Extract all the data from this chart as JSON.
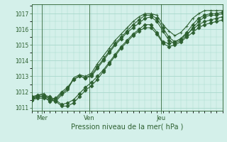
{
  "bg_color": "#d4f0ea",
  "grid_color": "#a8d8cc",
  "line_color": "#2d6030",
  "title": "Pression niveau de la mer( hPa )",
  "xlabel_mer": "Mer",
  "xlabel_ven": "Ven",
  "xlabel_jeu": "Jeu",
  "ymin": 1010.8,
  "ymax": 1017.6,
  "yticks": [
    1011,
    1012,
    1013,
    1014,
    1015,
    1016,
    1017
  ],
  "xmin": 0,
  "xmax": 96,
  "x_mer": 5,
  "x_ven": 29,
  "x_jeu": 65,
  "lines": [
    {
      "x": [
        0,
        3,
        6,
        9,
        12,
        15,
        18,
        21,
        24,
        27,
        30,
        33,
        36,
        39,
        42,
        45,
        48,
        51,
        54,
        57,
        60,
        63,
        66,
        69,
        72,
        75,
        78,
        81,
        84,
        87,
        90,
        93,
        96
      ],
      "y": [
        1011.6,
        1011.8,
        1011.9,
        1011.5,
        1011.4,
        1011.8,
        1012.1,
        1012.9,
        1013.1,
        1013.0,
        1013.2,
        1013.8,
        1014.3,
        1014.8,
        1015.3,
        1015.7,
        1016.1,
        1016.5,
        1016.8,
        1017.0,
        1017.0,
        1016.9,
        1016.3,
        1015.9,
        1015.6,
        1015.8,
        1016.2,
        1016.7,
        1017.0,
        1017.2,
        1017.2,
        1017.2,
        1017.2
      ],
      "marker": "+"
    },
    {
      "x": [
        0,
        3,
        6,
        9,
        12,
        15,
        18,
        21,
        24,
        27,
        30,
        33,
        36,
        39,
        42,
        45,
        48,
        51,
        54,
        57,
        60,
        63,
        66,
        69,
        72,
        75,
        78,
        81,
        84,
        87,
        90,
        93,
        96
      ],
      "y": [
        1011.5,
        1011.7,
        1011.7,
        1011.4,
        1011.5,
        1011.9,
        1012.2,
        1012.8,
        1013.0,
        1012.9,
        1013.1,
        1013.6,
        1014.1,
        1014.6,
        1015.1,
        1015.5,
        1015.9,
        1016.3,
        1016.6,
        1016.9,
        1016.9,
        1016.7,
        1016.1,
        1015.5,
        1015.2,
        1015.4,
        1015.8,
        1016.3,
        1016.7,
        1016.9,
        1017.0,
        1017.0,
        1017.1
      ],
      "marker": "D"
    },
    {
      "x": [
        0,
        3,
        6,
        9,
        12,
        15,
        18,
        21,
        24,
        27,
        30,
        33,
        36,
        39,
        42,
        45,
        48,
        51,
        54,
        57,
        60,
        63,
        66,
        69,
        72,
        75,
        78,
        81,
        84,
        87,
        90,
        93,
        96
      ],
      "y": [
        1011.5,
        1011.6,
        1011.6,
        1011.5,
        1011.6,
        1012.0,
        1012.3,
        1012.8,
        1013.0,
        1012.9,
        1013.0,
        1013.5,
        1014.0,
        1014.5,
        1015.0,
        1015.4,
        1015.8,
        1016.1,
        1016.4,
        1016.7,
        1016.8,
        1016.5,
        1015.9,
        1015.3,
        1015.1,
        1015.3,
        1015.6,
        1016.1,
        1016.5,
        1016.8,
        1016.9,
        1016.9,
        1017.0
      ],
      "marker": "D"
    },
    {
      "x": [
        0,
        3,
        6,
        9,
        12,
        15,
        18,
        21,
        24,
        27,
        30,
        33,
        36,
        39,
        42,
        45,
        48,
        51,
        54,
        57,
        60,
        63,
        66,
        69,
        72,
        75,
        78,
        81,
        84,
        87,
        90,
        93,
        96
      ],
      "y": [
        1011.7,
        1011.8,
        1011.8,
        1011.7,
        1011.5,
        1011.2,
        1011.3,
        1011.5,
        1011.9,
        1012.3,
        1012.6,
        1013.0,
        1013.4,
        1013.9,
        1014.4,
        1014.9,
        1015.3,
        1015.7,
        1016.0,
        1016.3,
        1016.3,
        1015.8,
        1015.2,
        1015.1,
        1015.2,
        1015.4,
        1015.7,
        1016.0,
        1016.3,
        1016.5,
        1016.6,
        1016.7,
        1016.8
      ],
      "marker": "D"
    },
    {
      "x": [
        0,
        3,
        6,
        9,
        12,
        15,
        18,
        21,
        24,
        27,
        30,
        33,
        36,
        39,
        42,
        45,
        48,
        51,
        54,
        57,
        60,
        63,
        66,
        69,
        72,
        75,
        78,
        81,
        84,
        87,
        90,
        93,
        96
      ],
      "y": [
        1011.6,
        1011.7,
        1011.7,
        1011.6,
        1011.4,
        1011.1,
        1011.1,
        1011.3,
        1011.7,
        1012.1,
        1012.4,
        1012.8,
        1013.3,
        1013.8,
        1014.3,
        1014.8,
        1015.2,
        1015.6,
        1015.9,
        1016.1,
        1016.1,
        1015.7,
        1015.1,
        1014.9,
        1015.0,
        1015.2,
        1015.5,
        1015.8,
        1016.1,
        1016.3,
        1016.4,
        1016.5,
        1016.6
      ],
      "marker": "D"
    }
  ]
}
